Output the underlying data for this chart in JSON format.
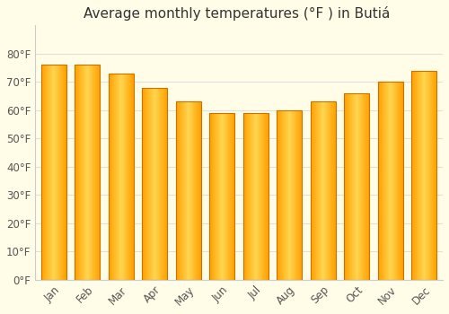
{
  "title": "Average monthly temperatures (°F ) in Butiá ",
  "months": [
    "Jan",
    "Feb",
    "Mar",
    "Apr",
    "May",
    "Jun",
    "Jul",
    "Aug",
    "Sep",
    "Oct",
    "Nov",
    "Dec"
  ],
  "values": [
    76,
    76,
    73,
    68,
    63,
    59,
    59,
    60,
    63,
    66,
    70,
    74
  ],
  "bar_color_center": "#FFD54F",
  "bar_color_edge": "#FFA000",
  "bar_edge_color": "#E65100",
  "background_color": "#FFFDE7",
  "plot_bg_color": "#FFFDE7",
  "grid_color": "#e0e0e0",
  "tick_label_color": "#555555",
  "title_color": "#333333",
  "ylim": [
    0,
    90
  ],
  "yticks": [
    0,
    10,
    20,
    30,
    40,
    50,
    60,
    70,
    80
  ],
  "ytick_labels": [
    "0°F",
    "10°F",
    "20°F",
    "30°F",
    "40°F",
    "50°F",
    "60°F",
    "70°F",
    "80°F"
  ],
  "title_fontsize": 11,
  "tick_fontsize": 8.5,
  "figsize": [
    5.0,
    3.5
  ],
  "dpi": 100
}
